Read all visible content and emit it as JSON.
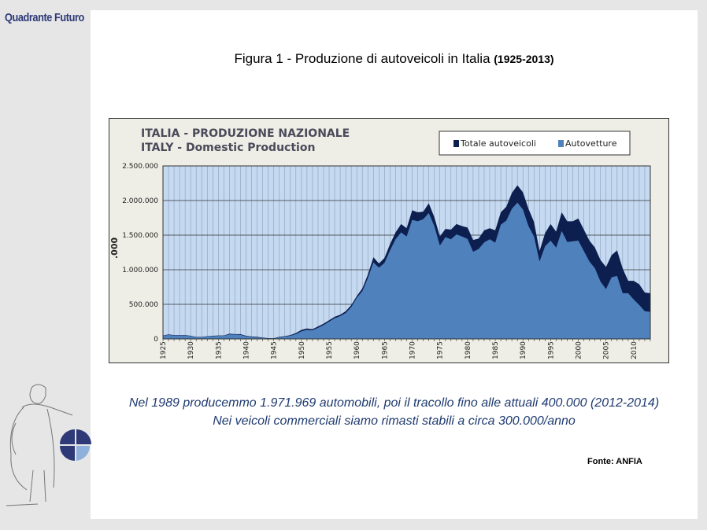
{
  "brand": "Quadrante Futuro",
  "figure_title": "Figura 1 - Produzione di autoveicoli in Italia",
  "figure_title_years": "(1925-2013)",
  "caption_line1": "Nel 1989 producemmo 1.971.969 automobili, poi il tracollo fino alle attuali 400.000 (2012-2014)",
  "caption_line2": "Nei veicoli commerciali siamo rimasti stabili a circa 300.000/anno",
  "source": "Fonte: ANFIA",
  "colors": {
    "total": "#0d1f4f",
    "cars": "#4f81bd",
    "plot_bg": "#c5d9f1"
  },
  "chart_data": {
    "type": "area",
    "title": "ITALIA - PRODUZIONE NAZIONALE",
    "subtitle": "ITALY - Domestic Production",
    "ylabel": ".000",
    "ylim": [
      0,
      2500000
    ],
    "yticks": [
      "0",
      "500.000",
      "1.000.000",
      "1.500.000",
      "2.000.000",
      "2.500.000"
    ],
    "legend": "top-right",
    "x_start": 1925,
    "xticks": [
      "1925",
      "1930",
      "1935",
      "1940",
      "1945",
      "1950",
      "1955",
      "1960",
      "1965",
      "1970",
      "1975",
      "1980",
      "1985",
      "1990",
      "1995",
      "2000",
      "2005",
      "2010"
    ],
    "series": [
      {
        "name": "Totale autoveicoli",
        "values": [
          50,
          65,
          55,
          55,
          55,
          45,
          30,
          30,
          40,
          45,
          50,
          50,
          75,
          70,
          70,
          45,
          35,
          30,
          20,
          10,
          10,
          30,
          40,
          55,
          85,
          130,
          150,
          140,
          180,
          220,
          270,
          320,
          350,
          400,
          490,
          620,
          730,
          930,
          1180,
          1090,
          1170,
          1370,
          1540,
          1660,
          1600,
          1860,
          1830,
          1840,
          1960,
          1760,
          1480,
          1590,
          1580,
          1660,
          1630,
          1610,
          1430,
          1450,
          1570,
          1600,
          1570,
          1830,
          1910,
          2110,
          2220,
          2120,
          1880,
          1690,
          1270,
          1530,
          1660,
          1550,
          1830,
          1700,
          1700,
          1740,
          1580,
          1420,
          1320,
          1140,
          1040,
          1210,
          1280,
          1020,
          840,
          840,
          790,
          670,
          660
        ]
      },
      {
        "name": "Autovetture",
        "values": [
          45,
          58,
          50,
          50,
          50,
          40,
          25,
          26,
          35,
          40,
          44,
          45,
          65,
          62,
          60,
          38,
          28,
          22,
          14,
          6,
          5,
          22,
          32,
          45,
          70,
          110,
          130,
          125,
          160,
          200,
          250,
          300,
          330,
          375,
          460,
          595,
          690,
          880,
          1105,
          1030,
          1100,
          1280,
          1440,
          1540,
          1480,
          1720,
          1700,
          1730,
          1820,
          1630,
          1350,
          1470,
          1440,
          1510,
          1480,
          1445,
          1260,
          1300,
          1395,
          1440,
          1390,
          1650,
          1710,
          1880,
          1970,
          1870,
          1630,
          1480,
          1120,
          1340,
          1420,
          1320,
          1560,
          1400,
          1410,
          1420,
          1270,
          1120,
          1020,
          830,
          720,
          890,
          910,
          660,
          660,
          570,
          490,
          400,
          390
        ]
      }
    ]
  }
}
